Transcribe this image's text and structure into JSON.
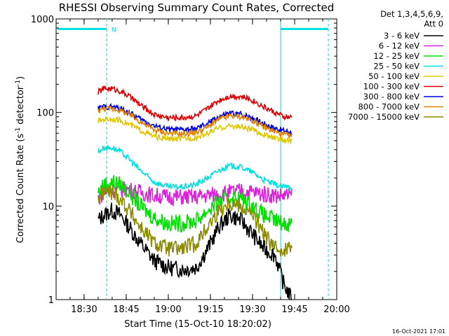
{
  "chart_data": {
    "type": "line",
    "title": "RHESSI Observing Summary Count Rates, Corrected",
    "xlabel": "Start Time (15-Oct-10 18:20:02)",
    "ylabel_main": "Corrected Count Rate (s",
    "ylabel_sup1": "-1",
    "ylabel_mid": " detector",
    "ylabel_sup2": "-1",
    "ylabel_end": ")",
    "y_scale": "log",
    "ylim": [
      1,
      1000
    ],
    "xlim": [
      "18:20:02",
      "20:00"
    ],
    "x_ticks": [
      "18:30",
      "18:45",
      "19:00",
      "19:15",
      "19:30",
      "19:45",
      "20:00"
    ],
    "y_ticks": [
      "1",
      "10",
      "100",
      "1000"
    ],
    "legend_position": "top-right",
    "legend_header": [
      "Det 1,3,4,5,6,9,",
      "Att 0"
    ],
    "night_marker": "N",
    "footer_timestamp": "16-Oct-2021 17:01",
    "data_start": "18:35",
    "data_end": "19:44",
    "event_lines": [
      "18:38",
      "19:40",
      "19:57"
    ],
    "night_bar_y": 780,
    "series": [
      {
        "name": "3 - 6 keV",
        "color": "#000000",
        "x": [
          "18:35",
          "18:37",
          "18:40",
          "18:43",
          "18:46",
          "18:50",
          "18:55",
          "19:00",
          "19:05",
          "19:10",
          "19:14",
          "19:18",
          "19:22",
          "19:26",
          "19:30",
          "19:34",
          "19:38",
          "19:41",
          "19:44"
        ],
        "y": [
          7,
          8,
          9,
          8,
          6,
          4,
          2.6,
          2.2,
          2.1,
          2.2,
          3.5,
          6,
          8,
          7,
          5,
          3.5,
          3,
          1.5,
          1
        ]
      },
      {
        "name": "6 - 12 keV",
        "color": "#e020e0",
        "x": [
          "18:35",
          "18:37",
          "18:40",
          "18:43",
          "18:46",
          "18:50",
          "18:55",
          "19:00",
          "19:05",
          "19:10",
          "19:14",
          "19:18",
          "19:22",
          "19:26",
          "19:30",
          "19:34",
          "19:38",
          "19:41",
          "19:44"
        ],
        "y": [
          12,
          14,
          15,
          15,
          15,
          14,
          13,
          12.5,
          12.5,
          12.5,
          13,
          13.5,
          14,
          14.5,
          14,
          13.5,
          13,
          13,
          13
        ]
      },
      {
        "name": "12 - 25 keV",
        "color": "#00e000",
        "x": [
          "18:35",
          "18:37",
          "18:40",
          "18:43",
          "18:46",
          "18:50",
          "18:55",
          "19:00",
          "19:05",
          "19:10",
          "19:14",
          "19:18",
          "19:22",
          "19:26",
          "19:30",
          "19:34",
          "19:38",
          "19:41",
          "19:44"
        ],
        "y": [
          14,
          17,
          18,
          17,
          14,
          10,
          7.5,
          6.5,
          6.5,
          7,
          9,
          11,
          12.5,
          12,
          10,
          8,
          7,
          6.5,
          6.5
        ]
      },
      {
        "name": "25 - 50 keV",
        "color": "#00e0e0",
        "x": [
          "18:35",
          "18:37",
          "18:40",
          "18:43",
          "18:46",
          "18:50",
          "18:55",
          "19:00",
          "19:05",
          "19:10",
          "19:14",
          "19:18",
          "19:22",
          "19:26",
          "19:30",
          "19:34",
          "19:38",
          "19:41",
          "19:44"
        ],
        "y": [
          38,
          42,
          42,
          38,
          32,
          24,
          18,
          16,
          16,
          17,
          20,
          24,
          27,
          26,
          23,
          19,
          17,
          16,
          16
        ]
      },
      {
        "name": "50 - 100 keV",
        "color": "#e0c800",
        "x": [
          "18:35",
          "18:37",
          "18:40",
          "18:43",
          "18:46",
          "18:50",
          "18:55",
          "19:00",
          "19:05",
          "19:10",
          "19:14",
          "19:18",
          "19:22",
          "19:26",
          "19:30",
          "19:34",
          "19:38",
          "19:41",
          "19:44"
        ],
        "y": [
          80,
          85,
          85,
          82,
          75,
          65,
          55,
          52,
          52,
          54,
          60,
          68,
          72,
          70,
          65,
          58,
          53,
          51,
          50
        ]
      },
      {
        "name": "100 - 300 keV",
        "color": "#e00000",
        "x": [
          "18:35",
          "18:37",
          "18:40",
          "18:43",
          "18:46",
          "18:50",
          "18:55",
          "19:00",
          "19:05",
          "19:10",
          "19:14",
          "19:18",
          "19:22",
          "19:26",
          "19:30",
          "19:34",
          "19:38",
          "19:41",
          "19:44"
        ],
        "y": [
          165,
          180,
          180,
          168,
          150,
          120,
          95,
          88,
          88,
          92,
          110,
          135,
          150,
          148,
          135,
          115,
          100,
          90,
          88
        ]
      },
      {
        "name": "300 - 800 keV",
        "color": "#0000e0",
        "x": [
          "18:35",
          "18:37",
          "18:40",
          "18:43",
          "18:46",
          "18:50",
          "18:55",
          "19:00",
          "19:05",
          "19:10",
          "19:14",
          "19:18",
          "19:22",
          "19:26",
          "19:30",
          "19:34",
          "19:38",
          "19:41",
          "19:44"
        ],
        "y": [
          110,
          115,
          115,
          110,
          100,
          85,
          72,
          66,
          65,
          67,
          76,
          90,
          98,
          96,
          88,
          76,
          68,
          64,
          62
        ]
      },
      {
        "name": "800 - 7000 keV",
        "color": "#e08000",
        "x": [
          "18:35",
          "18:37",
          "18:40",
          "18:43",
          "18:46",
          "18:50",
          "18:55",
          "19:00",
          "19:05",
          "19:10",
          "19:14",
          "19:18",
          "19:22",
          "19:26",
          "19:30",
          "19:34",
          "19:38",
          "19:41",
          "19:44"
        ],
        "y": [
          105,
          110,
          110,
          105,
          95,
          80,
          65,
          60,
          59,
          61,
          70,
          84,
          92,
          90,
          82,
          70,
          62,
          58,
          56
        ]
      },
      {
        "name": "7000 - 15000 keV",
        "color": "#8c8c00",
        "x": [
          "18:35",
          "18:37",
          "18:40",
          "18:43",
          "18:46",
          "18:50",
          "18:55",
          "19:00",
          "19:05",
          "19:10",
          "19:14",
          "19:18",
          "19:22",
          "19:26",
          "19:30",
          "19:34",
          "19:38",
          "19:41",
          "19:44"
        ],
        "y": [
          12,
          14,
          14,
          12,
          9,
          6,
          4,
          3.5,
          3.5,
          4,
          6,
          9,
          11,
          10,
          8,
          5,
          3.5,
          3.5,
          3.5
        ]
      }
    ]
  }
}
